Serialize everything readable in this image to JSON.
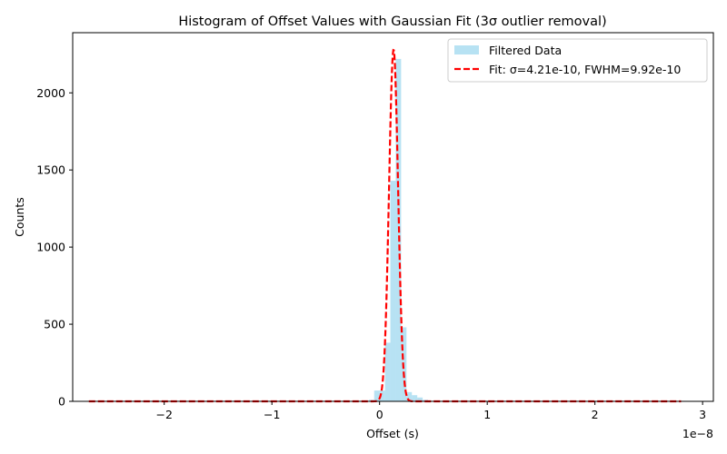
{
  "chart_data": {
    "type": "bar",
    "title": "Histogram of Offset Values with Gaussian Fit (3σ outlier removal)",
    "xlabel": "Offset (s)",
    "ylabel": "Counts",
    "x_offset_label": "1e−8",
    "xlim": [
      -2.85,
      3.1
    ],
    "ylim": [
      0,
      2390
    ],
    "x_ticks": [
      -2,
      -1,
      0,
      1,
      2,
      3
    ],
    "x_tick_labels": [
      "−2",
      "−1",
      "0",
      "1",
      "2",
      "3"
    ],
    "y_ticks": [
      0,
      500,
      1000,
      1500,
      2000
    ],
    "y_tick_labels": [
      "0",
      "500",
      "1000",
      "1500",
      "2000"
    ],
    "legend_position": "top-right",
    "grid": false,
    "histogram": {
      "name": "Filtered Data",
      "color": "#87ceeb",
      "opacity": 0.6,
      "bin_width": 0.05,
      "bins": [
        {
          "x": -0.1,
          "count": 10
        },
        {
          "x": -0.05,
          "count": 70
        },
        {
          "x": 0.0,
          "count": 70
        },
        {
          "x": 0.05,
          "count": 380
        },
        {
          "x": 0.1,
          "count": 1430
        },
        {
          "x": 0.15,
          "count": 2220
        },
        {
          "x": 0.2,
          "count": 480
        },
        {
          "x": 0.25,
          "count": 60
        },
        {
          "x": 0.3,
          "count": 40
        },
        {
          "x": 0.35,
          "count": 25
        },
        {
          "x": 0.4,
          "count": 10
        }
      ]
    },
    "fit": {
      "name": "Fit: σ=4.21e-10, FWHM=9.92e-10",
      "color": "#ff0000",
      "style": "dashed",
      "amplitude": 2280,
      "mean": 0.13,
      "sigma": 0.0421,
      "x_range": [
        -2.7,
        2.8
      ]
    }
  }
}
